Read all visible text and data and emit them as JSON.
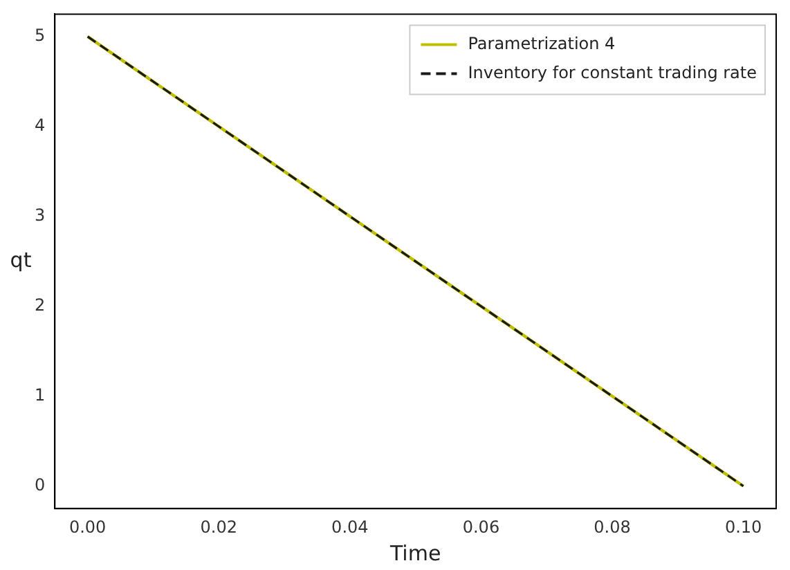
{
  "chart_data": {
    "type": "line",
    "xlabel": "Time",
    "ylabel": "qt",
    "x": [
      0,
      0.1
    ],
    "series": [
      {
        "name": "Parametrization 4",
        "color": "#bfbf00",
        "values": [
          5,
          0
        ],
        "line_style": "solid"
      },
      {
        "name": "Inventory for constant trading rate",
        "color": "#1a1a1a",
        "values": [
          5,
          0
        ],
        "line_style": "dashed"
      }
    ],
    "xlim": [
      -0.005,
      0.105
    ],
    "xticks": [
      {
        "value": 0,
        "label": "0.00"
      },
      {
        "value": 0.02,
        "label": "0.02"
      },
      {
        "value": 0.04,
        "label": "0.04"
      },
      {
        "value": 0.06,
        "label": "0.06"
      },
      {
        "value": 0.08,
        "label": "0.08"
      },
      {
        "value": 0.1,
        "label": "0.10"
      }
    ],
    "ylim": [
      -0.25,
      5.25
    ],
    "yticks": [
      0,
      1,
      2,
      3,
      4,
      5
    ],
    "grid": false,
    "legend": "top right",
    "marker": "none"
  }
}
